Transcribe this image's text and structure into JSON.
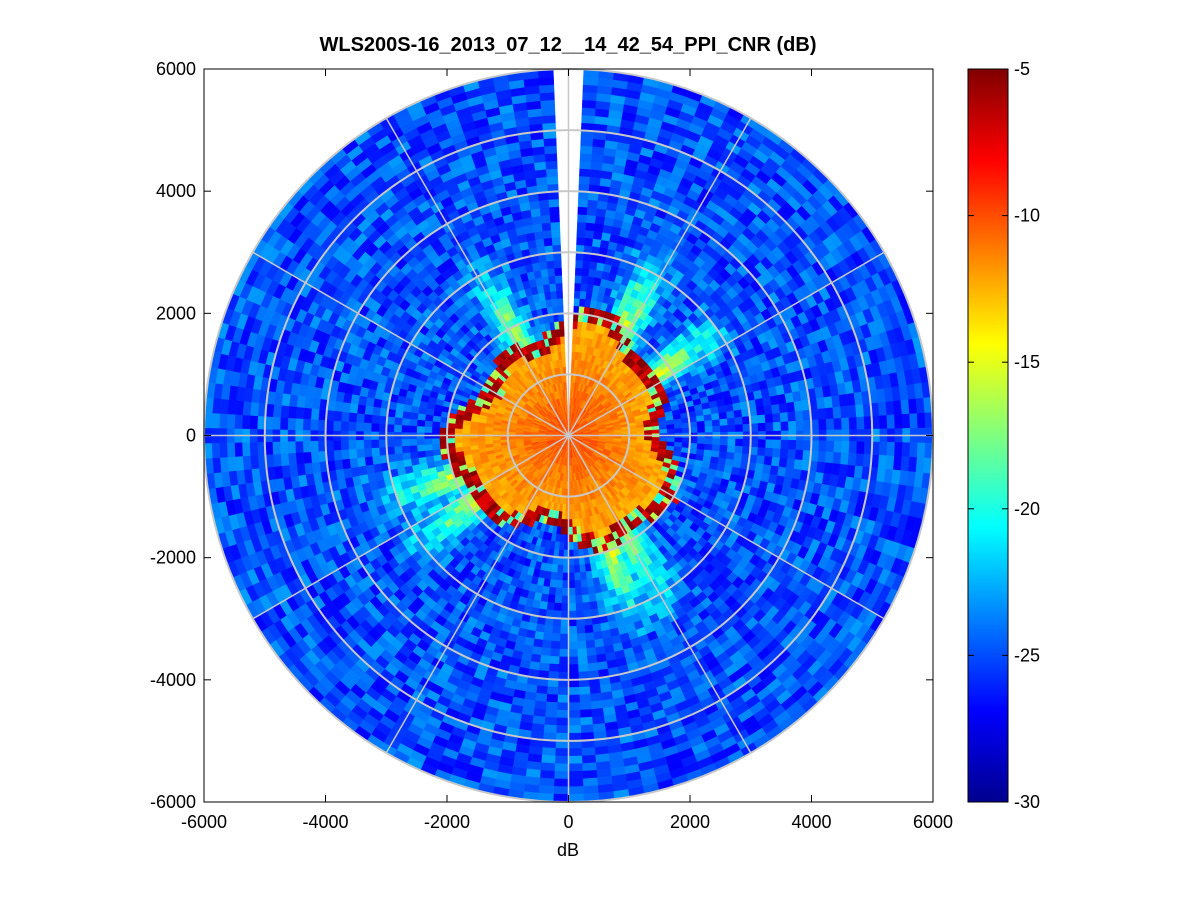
{
  "chart_data": {
    "type": "heatmap",
    "subtype": "polar-ppi",
    "title": "WLS200S-16_2013_07_12__14_42_54_PPI_CNR (dB)",
    "xlabel": "dB",
    "ylabel": "",
    "xlim": [
      -6000,
      6000
    ],
    "ylim": [
      -6000,
      6000
    ],
    "x_ticks": [
      -6000,
      -4000,
      -2000,
      0,
      2000,
      4000,
      6000
    ],
    "y_ticks": [
      6000,
      4000,
      2000,
      0,
      -2000,
      -4000,
      -6000
    ],
    "x_tick_labels": [
      "-6000",
      "-4000",
      "-2000",
      "0",
      "2000",
      "4000",
      "6000"
    ],
    "y_tick_labels": [
      "6000",
      "4000",
      "2000",
      "0",
      "-2000",
      "-4000",
      "-6000"
    ],
    "polar_grid": {
      "rings": [
        1000,
        2000,
        3000,
        4000,
        5000,
        6000
      ],
      "spokes_deg": [
        0,
        30,
        60,
        90,
        120,
        150,
        180,
        210,
        240,
        270,
        300,
        330
      ]
    },
    "max_range": 6000,
    "colorbar": {
      "colormap": "jet",
      "clim": [
        -30,
        -5
      ],
      "ticks": [
        -5,
        -10,
        -15,
        -20,
        -25,
        -30
      ],
      "tick_labels": [
        "-5",
        "-10",
        "-15",
        "-20",
        "-25",
        "-30"
      ]
    },
    "field": {
      "inner_high_cnr_radius_approx": 1700,
      "inner_value_approx": -10,
      "boundary_value_approx": -5,
      "far_field_value_approx": -25,
      "blocked_sector_deg": [
        -1.8,
        1.8
      ]
    },
    "grid": true,
    "legend": "none"
  }
}
